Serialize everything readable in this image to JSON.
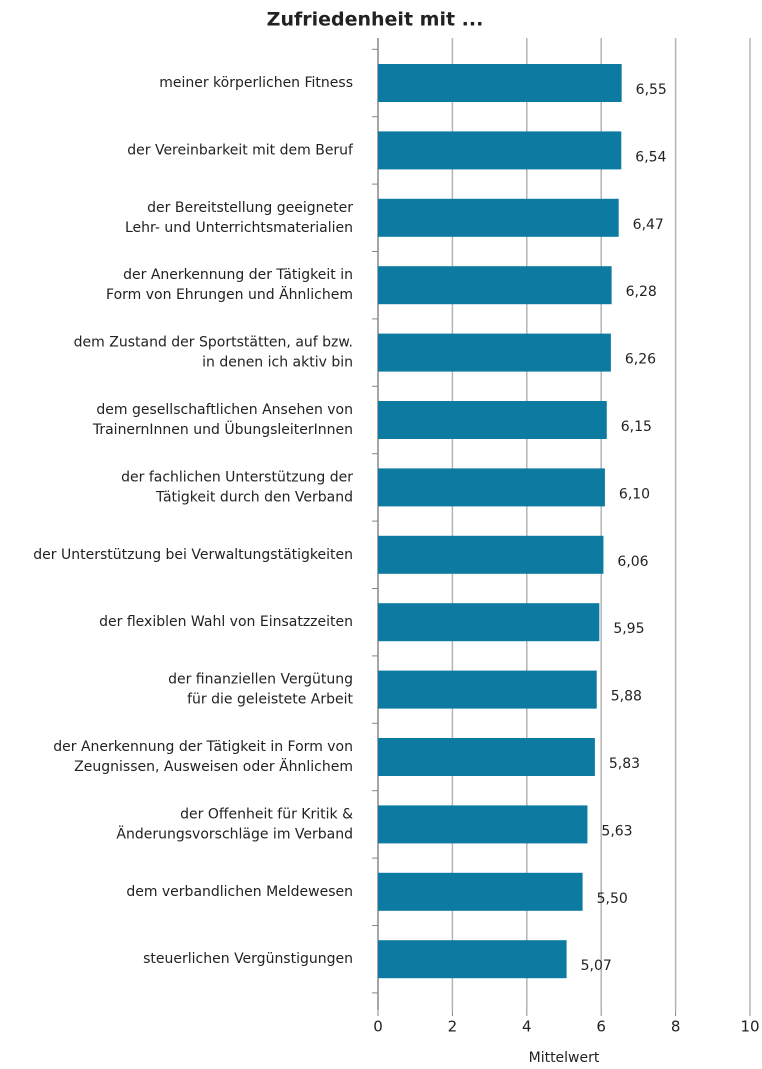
{
  "chart_data": {
    "type": "bar",
    "orientation": "horizontal",
    "title": "Zufriedenheit mit ...",
    "x_label": "Mittelwert",
    "categories": [
      [
        "meiner körperlichen Fitness"
      ],
      [
        "der Vereinbarkeit mit dem Beruf"
      ],
      [
        "der Bereitstellung geeigneter",
        "Lehr- und Unterrichtsmaterialien"
      ],
      [
        "der Anerkennung der Tätigkeit in",
        "Form von Ehrungen und Ähnlichem"
      ],
      [
        "dem Zustand der Sportstätten, auf bzw.",
        "in denen ich aktiv bin"
      ],
      [
        "dem gesellschaftlichen Ansehen von",
        "TrainernInnen und ÜbungsleiterInnen"
      ],
      [
        "der fachlichen Unterstützung der",
        "Tätigkeit durch den Verband"
      ],
      [
        "der Unterstützung bei Verwaltungstätigkeiten"
      ],
      [
        "der flexiblen Wahl von Einsatzzeiten"
      ],
      [
        "der finanziellen Vergütung",
        "für die geleistete Arbeit"
      ],
      [
        "der Anerkennung der Tätigkeit in Form von",
        "Zeugnissen, Ausweisen oder Ähnlichem"
      ],
      [
        "der Offenheit für Kritik &",
        "Änderungsvorschläge im Verband"
      ],
      [
        "dem verbandlichen Meldewesen"
      ],
      [
        "steuerlichen Vergünstigungen"
      ]
    ],
    "values": [
      6.55,
      6.54,
      6.47,
      6.28,
      6.26,
      6.15,
      6.1,
      6.06,
      5.95,
      5.88,
      5.83,
      5.63,
      5.5,
      5.07
    ],
    "value_labels": [
      "6,55",
      "6,54",
      "6,47",
      "6,28",
      "6,26",
      "6,15",
      "6,10",
      "6,06",
      "5,95",
      "5,88",
      "5,83",
      "5,63",
      "5,50",
      "5,07"
    ],
    "color": "#0c7aa1",
    "xlim": [
      0,
      10
    ],
    "xticks": [
      0,
      2,
      4,
      6,
      8,
      10
    ],
    "grid": true
  }
}
